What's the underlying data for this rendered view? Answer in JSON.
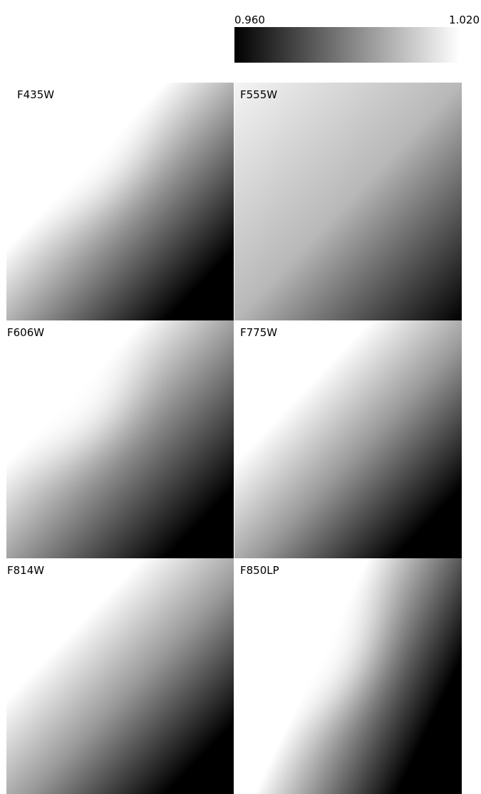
{
  "colorbar": {
    "min_label": "0.960",
    "max_label": "1.020"
  },
  "panels": [
    {
      "label": "F435W"
    },
    {
      "label": "F555W"
    },
    {
      "label": "F606W"
    },
    {
      "label": "F775W"
    },
    {
      "label": "F814W"
    },
    {
      "label": "F850LP"
    }
  ]
}
